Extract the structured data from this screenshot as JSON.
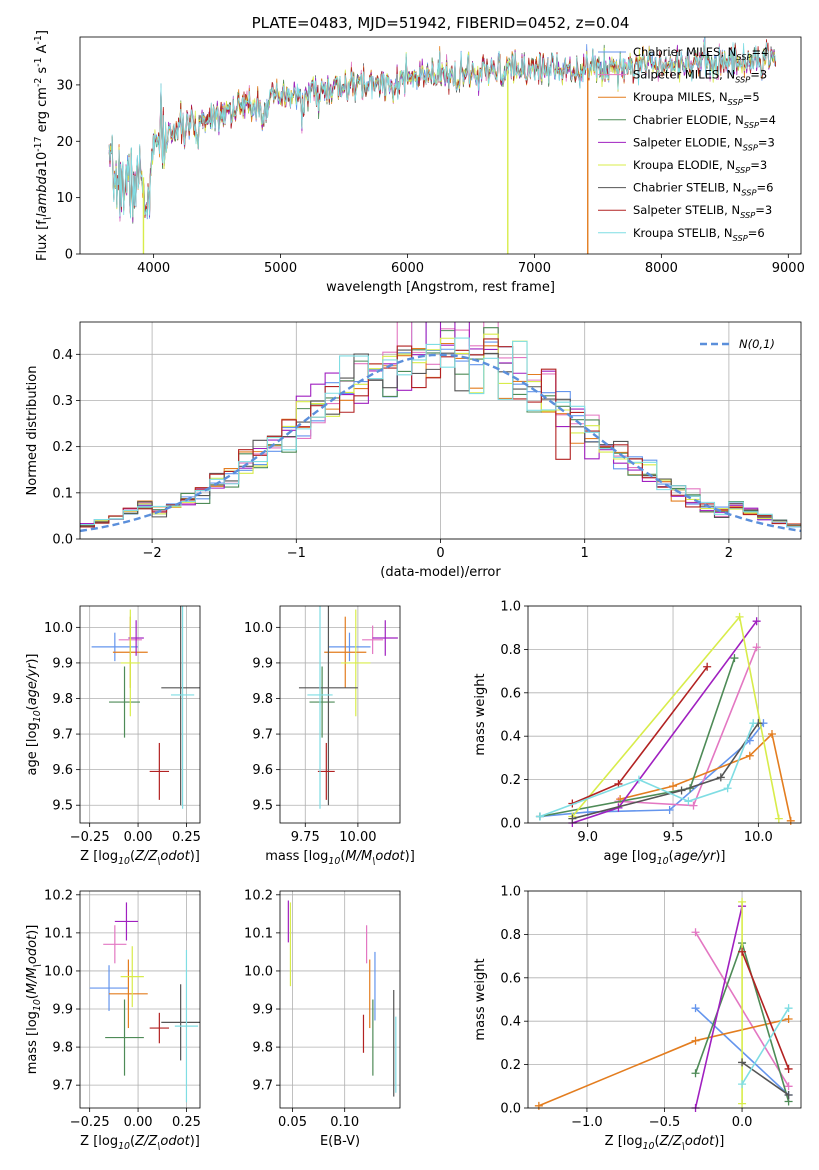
{
  "chart_data": [
    {
      "id": "spectrum",
      "type": "line",
      "title": "PLATE=0483, MJD=51942, FIBERID=0452, z=0.04",
      "xlabel": "wavelength [Angstrom, rest frame]",
      "ylabel": "Flux [f$_\\lambda$10$^{-17}$ erg cm$^{-2}$ s$^{-1}$ A$^{-1}$]",
      "xlim": [
        3420,
        9100
      ],
      "ylim": [
        0,
        38.5
      ],
      "xticks": [
        4000,
        5000,
        6000,
        7000,
        8000,
        9000
      ],
      "yticks": [
        0,
        10,
        20,
        30
      ],
      "legend_position": "right",
      "series": [
        {
          "name": "Chabrier MILES, N$_{SSP}$=4",
          "color": "#6495ed"
        },
        {
          "name": "Salpeter MILES, N$_{SSP}$=3",
          "color": "#e377c2"
        },
        {
          "name": "Kroupa MILES, N$_{SSP}$=5",
          "color": "#e37d1f"
        },
        {
          "name": "Chabrier ELODIE, N$_{SSP}$=4",
          "color": "#4e8b57"
        },
        {
          "name": "Salpeter ELODIE, N$_{SSP}$=3",
          "color": "#a020c0"
        },
        {
          "name": "Kroupa ELODIE, N$_{SSP}$=3",
          "color": "#d8ec4a"
        },
        {
          "name": "Chabrier STELIB, N$_{SSP}$=6",
          "color": "#555555"
        },
        {
          "name": "Salpeter STELIB, N$_{SSP}$=3",
          "color": "#b22222"
        },
        {
          "name": "Kroupa STELIB, N$_{SSP}$=6",
          "color": "#7fdde3"
        }
      ],
      "continuum": {
        "x": [
          3650,
          3800,
          3950,
          4050,
          4300,
          4500,
          5000,
          5500,
          6000,
          6500,
          7000,
          7500,
          8000,
          8500,
          8900
        ],
        "y": [
          14,
          12,
          14,
          21,
          23,
          25,
          27.5,
          29.5,
          31,
          32,
          33,
          33,
          34,
          34,
          34.5
        ]
      },
      "dropouts": [
        {
          "x": 3920,
          "color": "#d8ec4a"
        },
        {
          "x": 6790,
          "color": "#d8ec4a"
        },
        {
          "x": 7420,
          "color": "#e37d1f"
        }
      ]
    },
    {
      "id": "residuals",
      "type": "step",
      "xlabel": "(data-model)/error",
      "ylabel": "Normed distribution",
      "xlim": [
        -2.5,
        2.5
      ],
      "ylim": [
        0,
        0.47
      ],
      "xticks": [
        -2,
        -1,
        0,
        1,
        2
      ],
      "yticks": [
        0.0,
        0.1,
        0.2,
        0.3,
        0.4
      ],
      "legend": "$\\mathcal{N}(0,1)$",
      "legend_position": "top-right",
      "grid": true,
      "bin_width": 0.1,
      "reference_color": "#5b8fdb"
    },
    {
      "id": "age-vs-Z",
      "type": "errorbar",
      "xlabel": "Z [log$_{10}$($Z/Z_\\odot$)]",
      "ylabel": "age  [log$_{10}$($age/yr$)]",
      "xlim": [
        -0.3,
        0.32
      ],
      "ylim": [
        9.45,
        10.06
      ],
      "xticks": [
        -0.25,
        0.0,
        0.25
      ],
      "yticks": [
        9.5,
        9.6,
        9.7,
        9.8,
        9.9,
        10.0
      ],
      "grid": true,
      "points": [
        {
          "x": -0.12,
          "y": 9.945,
          "xerr": 0.12,
          "yerr": 0.04,
          "color": "#6495ed"
        },
        {
          "x": -0.04,
          "y": 9.965,
          "xerr": 0.06,
          "yerr": 0.04,
          "color": "#e377c2"
        },
        {
          "x": -0.04,
          "y": 9.93,
          "xerr": 0.09,
          "yerr": 0.1,
          "color": "#e37d1f"
        },
        {
          "x": -0.07,
          "y": 9.79,
          "xerr": 0.08,
          "yerr": 0.1,
          "color": "#4e8b57"
        },
        {
          "x": -0.01,
          "y": 9.97,
          "xerr": 0.04,
          "yerr": 0.05,
          "color": "#a020c0"
        },
        {
          "x": -0.04,
          "y": 9.9,
          "xerr": 0.05,
          "yerr": 0.15,
          "color": "#d8ec4a"
        },
        {
          "x": 0.22,
          "y": 9.83,
          "xerr": 0.1,
          "yerr": 0.33,
          "color": "#555555"
        },
        {
          "x": 0.11,
          "y": 9.595,
          "xerr": 0.05,
          "yerr": 0.08,
          "color": "#b22222"
        },
        {
          "x": 0.23,
          "y": 9.81,
          "xerr": 0.06,
          "yerr": 0.32,
          "color": "#7fdde3"
        }
      ]
    },
    {
      "id": "age-vs-mass",
      "type": "errorbar",
      "xlabel": "mass [log$_{10}$($M/M_\\odot$)]",
      "ylabel": "",
      "xlim": [
        9.63,
        10.2
      ],
      "ylim": [
        9.45,
        10.06
      ],
      "xticks": [
        9.75,
        10.0
      ],
      "yticks": [
        9.5,
        9.6,
        9.7,
        9.8,
        9.9,
        10.0
      ],
      "grid": true,
      "points": [
        {
          "x": 9.96,
          "y": 9.945,
          "xerr": 0.1,
          "yerr": 0.04,
          "color": "#6495ed"
        },
        {
          "x": 10.07,
          "y": 9.965,
          "xerr": 0.05,
          "yerr": 0.04,
          "color": "#e377c2"
        },
        {
          "x": 9.94,
          "y": 9.93,
          "xerr": 0.1,
          "yerr": 0.1,
          "color": "#e37d1f"
        },
        {
          "x": 9.83,
          "y": 9.79,
          "xerr": 0.06,
          "yerr": 0.1,
          "color": "#4e8b57"
        },
        {
          "x": 10.13,
          "y": 9.97,
          "xerr": 0.06,
          "yerr": 0.05,
          "color": "#a020c0"
        },
        {
          "x": 9.99,
          "y": 9.9,
          "xerr": 0.07,
          "yerr": 0.15,
          "color": "#d8ec4a"
        },
        {
          "x": 9.86,
          "y": 9.83,
          "xerr": 0.14,
          "yerr": 0.33,
          "color": "#555555"
        },
        {
          "x": 9.85,
          "y": 9.595,
          "xerr": 0.04,
          "yerr": 0.08,
          "color": "#b22222"
        },
        {
          "x": 9.82,
          "y": 9.81,
          "xerr": 0.06,
          "yerr": 0.32,
          "color": "#7fdde3"
        }
      ]
    },
    {
      "id": "weight-vs-age",
      "type": "line",
      "xlabel": "age  [log$_{10}$($age/yr$)]",
      "ylabel": "mass weight",
      "xlim": [
        8.65,
        10.25
      ],
      "ylim": [
        0,
        1.0
      ],
      "xticks": [
        9.0,
        9.5,
        10.0
      ],
      "yticks": [
        0.0,
        0.2,
        0.4,
        0.6,
        0.8,
        1.0
      ],
      "grid": true,
      "series": [
        {
          "color": "#6495ed",
          "x": [
            8.72,
            9.0,
            9.48,
            9.95,
            10.03
          ],
          "y": [
            0.03,
            0.05,
            0.06,
            0.38,
            0.46
          ]
        },
        {
          "color": "#e377c2",
          "x": [
            9.18,
            9.62,
            9.99
          ],
          "y": [
            0.1,
            0.08,
            0.81
          ]
        },
        {
          "color": "#e37d1f",
          "x": [
            9.19,
            9.5,
            9.95,
            10.08,
            10.19
          ],
          "y": [
            0.11,
            0.17,
            0.31,
            0.41,
            0.01
          ]
        },
        {
          "color": "#4e8b57",
          "x": [
            8.72,
            9.6,
            9.86
          ],
          "y": [
            0.03,
            0.16,
            0.76
          ]
        },
        {
          "color": "#a020c0",
          "x": [
            8.91,
            9.18,
            9.99
          ],
          "y": [
            0.0,
            0.07,
            0.93
          ]
        },
        {
          "color": "#d8ec4a",
          "x": [
            8.91,
            9.89,
            10.12
          ],
          "y": [
            0.03,
            0.95,
            0.02
          ]
        },
        {
          "color": "#555555",
          "x": [
            8.91,
            9.55,
            9.78,
            10.0
          ],
          "y": [
            0.02,
            0.15,
            0.21,
            0.46
          ]
        },
        {
          "color": "#b22222",
          "x": [
            8.91,
            9.18,
            9.7
          ],
          "y": [
            0.09,
            0.18,
            0.72
          ]
        },
        {
          "color": "#7fdde3",
          "x": [
            8.72,
            9.3,
            9.59,
            9.82,
            9.97
          ],
          "y": [
            0.03,
            0.2,
            0.1,
            0.16,
            0.46
          ]
        }
      ]
    },
    {
      "id": "mass-vs-Z",
      "type": "errorbar",
      "xlabel": "Z [log$_{10}$($Z/Z_\\odot$)]",
      "ylabel": "mass [log$_{10}$($M/M_\\odot$)]",
      "xlim": [
        -0.3,
        0.32
      ],
      "ylim": [
        9.64,
        10.21
      ],
      "xticks": [
        -0.25,
        0.0,
        0.25
      ],
      "yticks": [
        9.7,
        9.8,
        9.9,
        10.0,
        10.1,
        10.2
      ],
      "grid": true,
      "points": [
        {
          "x": -0.15,
          "y": 9.955,
          "xerr": 0.1,
          "yerr": 0.06,
          "color": "#6495ed"
        },
        {
          "x": -0.12,
          "y": 10.07,
          "xerr": 0.06,
          "yerr": 0.05,
          "color": "#e377c2"
        },
        {
          "x": -0.05,
          "y": 9.94,
          "xerr": 0.1,
          "yerr": 0.09,
          "color": "#e37d1f"
        },
        {
          "x": -0.07,
          "y": 9.825,
          "xerr": 0.1,
          "yerr": 0.1,
          "color": "#4e8b57"
        },
        {
          "x": -0.06,
          "y": 10.13,
          "xerr": 0.06,
          "yerr": 0.05,
          "color": "#a020c0"
        },
        {
          "x": -0.03,
          "y": 9.985,
          "xerr": 0.06,
          "yerr": 0.08,
          "color": "#d8ec4a"
        },
        {
          "x": 0.22,
          "y": 9.865,
          "xerr": 0.1,
          "yerr": 0.1,
          "color": "#555555"
        },
        {
          "x": 0.11,
          "y": 9.85,
          "xerr": 0.05,
          "yerr": 0.04,
          "color": "#b22222"
        },
        {
          "x": 0.25,
          "y": 9.855,
          "xerr": 0.06,
          "yerr": 0.2,
          "color": "#7fdde3"
        }
      ]
    },
    {
      "id": "mass-vs-EBV",
      "type": "errorbar",
      "xlabel": "E(B-V)",
      "ylabel": "",
      "xlim": [
        0.038,
        0.153
      ],
      "ylim": [
        9.64,
        10.21
      ],
      "xticks": [
        0.05,
        0.1
      ],
      "yticks": [
        9.7,
        9.8,
        9.9,
        10.0,
        10.1,
        10.2
      ],
      "grid": true,
      "points": [
        {
          "x": 0.121,
          "y": 10.07,
          "xerr": 0.0,
          "yerr": 0.05,
          "color": "#e377c2"
        },
        {
          "x": 0.124,
          "y": 9.94,
          "xerr": 0.0,
          "yerr": 0.09,
          "color": "#e37d1f"
        },
        {
          "x": 0.118,
          "y": 9.835,
          "xerr": 0.0,
          "yerr": 0.05,
          "color": "#b22222"
        },
        {
          "x": 0.127,
          "y": 9.825,
          "xerr": 0.0,
          "yerr": 0.1,
          "color": "#4e8b57"
        },
        {
          "x": 0.046,
          "y": 10.13,
          "xerr": 0.0,
          "yerr": 0.055,
          "color": "#a020c0"
        },
        {
          "x": 0.048,
          "y": 10.07,
          "xerr": 0.0,
          "yerr": 0.11,
          "color": "#d8ec4a"
        },
        {
          "x": 0.129,
          "y": 9.96,
          "xerr": 0.0,
          "yerr": 0.09,
          "color": "#6495ed"
        },
        {
          "x": 0.147,
          "y": 9.81,
          "xerr": 0.0,
          "yerr": 0.14,
          "color": "#555555"
        },
        {
          "x": 0.149,
          "y": 9.78,
          "xerr": 0.0,
          "yerr": 0.1,
          "color": "#7fdde3"
        }
      ]
    },
    {
      "id": "weight-vs-Z",
      "type": "line",
      "xlabel": "Z [log$_{10}$($Z/Z_\\odot$)]",
      "ylabel": "mass weight",
      "xlim": [
        -1.38,
        0.38
      ],
      "ylim": [
        0,
        1.0
      ],
      "xticks": [
        -1.0,
        -0.5,
        0.0
      ],
      "yticks": [
        0.0,
        0.2,
        0.4,
        0.6,
        0.8,
        1.0
      ],
      "grid": true,
      "series": [
        {
          "color": "#6495ed",
          "x": [
            -0.3,
            0.3
          ],
          "y": [
            0.46,
            0.06
          ]
        },
        {
          "color": "#e377c2",
          "x": [
            -0.3,
            0.3
          ],
          "y": [
            0.81,
            0.1
          ]
        },
        {
          "color": "#e37d1f",
          "x": [
            -1.31,
            -0.3,
            0.3
          ],
          "y": [
            0.01,
            0.31,
            0.41
          ]
        },
        {
          "color": "#4e8b57",
          "x": [
            -0.3,
            0.0,
            0.3
          ],
          "y": [
            0.16,
            0.76,
            0.03
          ]
        },
        {
          "color": "#a020c0",
          "x": [
            -0.3,
            0.0
          ],
          "y": [
            0.0,
            0.93
          ]
        },
        {
          "color": "#d8ec4a",
          "x": [
            0.0,
            0.0
          ],
          "y": [
            0.02,
            0.95
          ]
        },
        {
          "color": "#555555",
          "x": [
            0.0,
            0.3
          ],
          "y": [
            0.21,
            0.06
          ]
        },
        {
          "color": "#b22222",
          "x": [
            0.0,
            0.3
          ],
          "y": [
            0.72,
            0.18
          ]
        },
        {
          "color": "#7fdde3",
          "x": [
            0.0,
            0.3
          ],
          "y": [
            0.11,
            0.46
          ]
        }
      ]
    }
  ]
}
